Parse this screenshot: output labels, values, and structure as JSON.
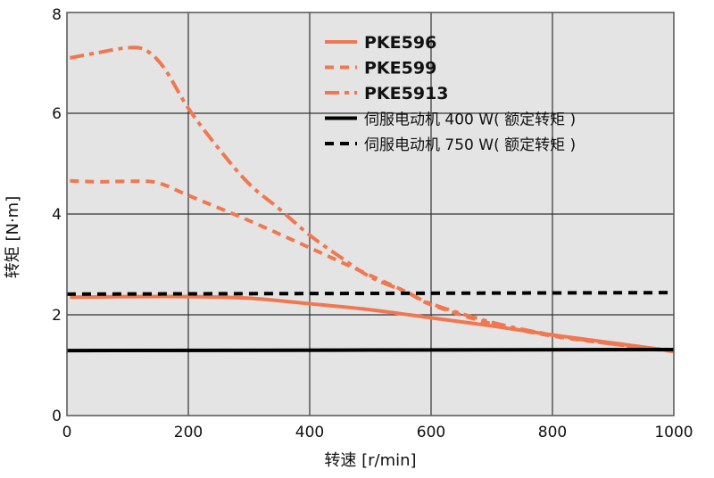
{
  "chart_data": {
    "type": "line",
    "xlabel": "转速 [r/min]",
    "ylabel": "转矩 [N·m]",
    "xlim": [
      0,
      1000
    ],
    "ylim": [
      0,
      8
    ],
    "xticks": [
      0,
      200,
      400,
      600,
      800,
      1000
    ],
    "yticks": [
      0,
      2,
      4,
      6,
      8
    ],
    "grid": true,
    "legend_position": "top-right",
    "colors": {
      "plot_bg": "#e4e4e4",
      "orange": "#f07850",
      "black": "#000000",
      "grid": "#333333"
    },
    "series": [
      {
        "name": "PKE596",
        "color": "#f07850",
        "style": "solid",
        "x": [
          5,
          100,
          200,
          300,
          400,
          500,
          600,
          700,
          800,
          900,
          1000
        ],
        "y": [
          2.35,
          2.36,
          2.36,
          2.33,
          2.22,
          2.1,
          1.94,
          1.78,
          1.6,
          1.44,
          1.28
        ]
      },
      {
        "name": "PKE599",
        "color": "#f07850",
        "style": "dotted",
        "x": [
          5,
          50,
          130,
          160,
          200,
          300,
          400,
          500,
          560,
          600,
          700,
          800,
          900,
          1000
        ],
        "y": [
          4.66,
          4.64,
          4.65,
          4.58,
          4.37,
          3.87,
          3.33,
          2.78,
          2.45,
          2.2,
          1.82,
          1.58,
          1.42,
          1.28
        ]
      },
      {
        "name": "PKE5913",
        "color": "#f07850",
        "style": "dashdot",
        "x": [
          5,
          50,
          100,
          130,
          160,
          200,
          250,
          300,
          350,
          400,
          450,
          500,
          560,
          600,
          700,
          800,
          900,
          1000
        ],
        "y": [
          7.1,
          7.2,
          7.3,
          7.25,
          6.9,
          6.1,
          5.3,
          4.6,
          4.1,
          3.58,
          3.15,
          2.75,
          2.45,
          2.22,
          1.85,
          1.6,
          1.42,
          1.27
        ]
      },
      {
        "name": "伺服电动机 400 W( 额定转矩 )",
        "color": "#000000",
        "style": "solid",
        "x": [
          0,
          1000
        ],
        "y": [
          1.29,
          1.31
        ]
      },
      {
        "name": "伺服电动机 750 W( 额定转矩 )",
        "color": "#000000",
        "style": "dotted",
        "x": [
          0,
          1000
        ],
        "y": [
          2.41,
          2.44
        ]
      }
    ]
  }
}
